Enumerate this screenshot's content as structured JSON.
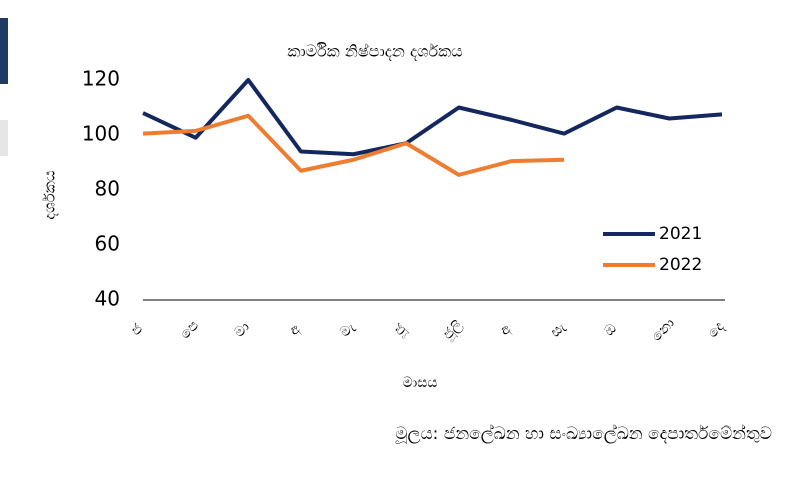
{
  "chart_data": {
    "type": "line",
    "title": "කාර්මික නිෂ්පාදන දර්ශකය",
    "y_label": "දර්ශකය",
    "x_label": "මාසය",
    "source": "මූලය: ජනලේඛන හා සංඛ්‍යාලේඛන දෙපාර්තමේන්තුව",
    "categories": [
      "ජ",
      "පෙ",
      "මා",
      "අ",
      "මැ",
      "ජූ",
      "ජූලි",
      "අ",
      "සැ",
      "ඔ",
      "නො",
      "දෙ"
    ],
    "series": [
      {
        "name": "2021",
        "color": "#14285f",
        "values": [
          108,
          99,
          120,
          94,
          93,
          97,
          110,
          105.5,
          100.5,
          110,
          106,
          107.5
        ]
      },
      {
        "name": "2022",
        "color": "#ed7d31",
        "values": [
          100.5,
          101.5,
          107,
          87,
          91,
          97,
          85.5,
          90.5,
          91,
          null,
          null,
          null
        ]
      }
    ],
    "ylim": [
      40,
      120
    ],
    "yticks": [
      40,
      60,
      80,
      100,
      120
    ],
    "legend": "right"
  }
}
